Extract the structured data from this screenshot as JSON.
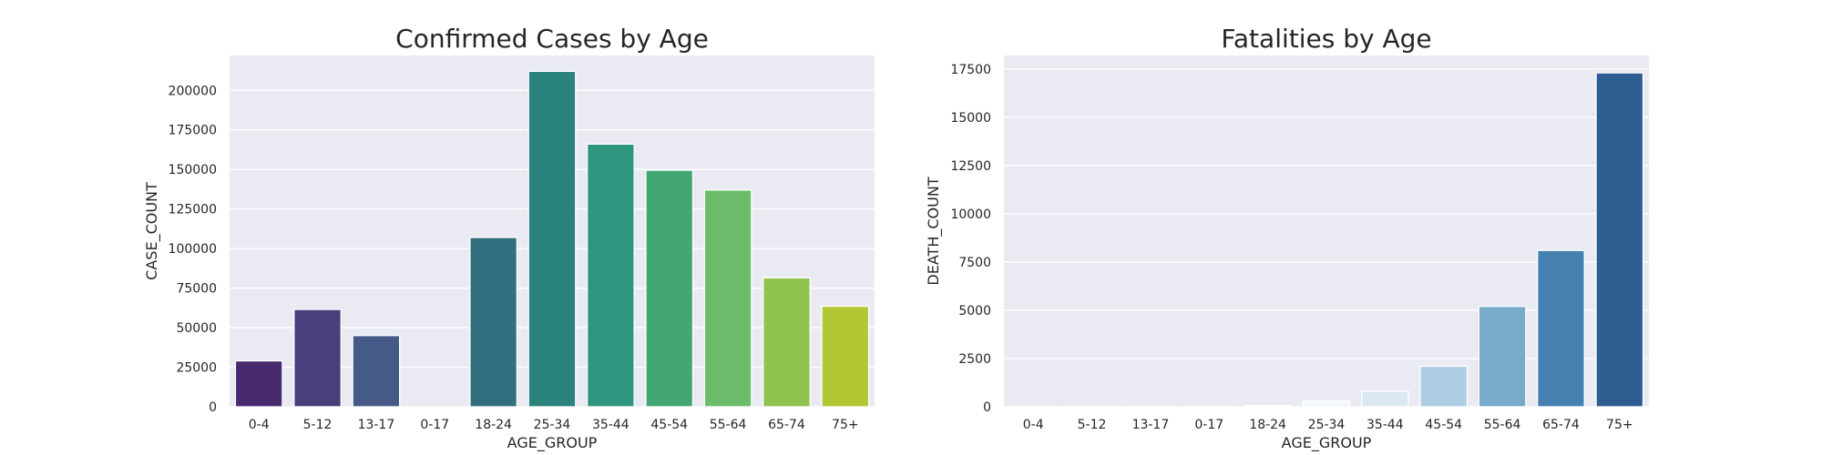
{
  "chart_data": [
    {
      "type": "bar",
      "title": "Confirmed Cases by Age",
      "xlabel": "AGE_GROUP",
      "ylabel": "CASE_COUNT",
      "categories": [
        "0-4",
        "5-12",
        "13-17",
        "0-17",
        "18-24",
        "25-34",
        "35-44",
        "45-54",
        "55-64",
        "65-74",
        "75+"
      ],
      "values": [
        29000,
        61500,
        45000,
        0,
        107000,
        212000,
        166000,
        149500,
        137000,
        81500,
        63500
      ],
      "ylim": [
        0,
        222000
      ],
      "yticks": [
        0,
        25000,
        50000,
        75000,
        100000,
        125000,
        150000,
        175000,
        200000
      ],
      "colors": [
        "#472a6e",
        "#4a3f7d",
        "#455a86",
        "#3f6d8e",
        "#326f7e",
        "#2a837d",
        "#2e957f",
        "#43a773",
        "#6cbc6c",
        "#8fc34f",
        "#b2c733"
      ],
      "grid": true
    },
    {
      "type": "bar",
      "title": "Fatalities by Age",
      "xlabel": "AGE_GROUP",
      "ylabel": "DEATH_COUNT",
      "categories": [
        "0-4",
        "5-12",
        "13-17",
        "0-17",
        "18-24",
        "25-34",
        "35-44",
        "45-54",
        "55-64",
        "65-74",
        "75+"
      ],
      "values": [
        2,
        3,
        8,
        15,
        60,
        300,
        800,
        2100,
        5200,
        8100,
        17300
      ],
      "ylim": [
        0,
        18200
      ],
      "yticks": [
        0,
        2500,
        5000,
        7500,
        10000,
        12500,
        15000,
        17500
      ],
      "colors": [
        "#f7fbff",
        "#f3f8fd",
        "#eef5fc",
        "#e8f1fa",
        "#e3eef8",
        "#f4f8fb",
        "#dae8f2",
        "#aecde3",
        "#78aac9",
        "#4680b0",
        "#2e5e91"
      ],
      "grid": true
    }
  ]
}
